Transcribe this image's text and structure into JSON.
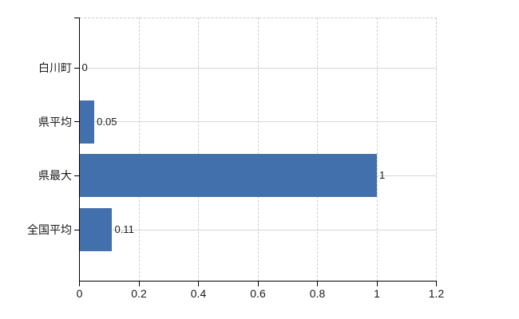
{
  "chart_data": {
    "type": "bar",
    "orientation": "horizontal",
    "title": "",
    "xlabel": "",
    "ylabel": "",
    "categories": [
      "白川町",
      "県平均",
      "県最大",
      "全国平均"
    ],
    "values": [
      0,
      0.05,
      1,
      0.11
    ],
    "value_labels": [
      "0",
      "0.05",
      "1",
      "0.11"
    ],
    "xlim": [
      0,
      1.2
    ],
    "xticks": [
      0,
      0.2,
      0.4,
      0.6,
      0.8,
      1,
      1.2
    ],
    "xtick_labels": [
      "0",
      "0.2",
      "0.4",
      "0.6",
      "0.8",
      "1",
      "1.2"
    ],
    "grid": true,
    "legend": false,
    "colors": {
      "bar": "#4170ac",
      "grid_solid": "#d6d6d6",
      "grid_dashed": "#cccccc",
      "axis": "#000000",
      "text": "#1a1a1a",
      "background": "#ffffff"
    }
  }
}
